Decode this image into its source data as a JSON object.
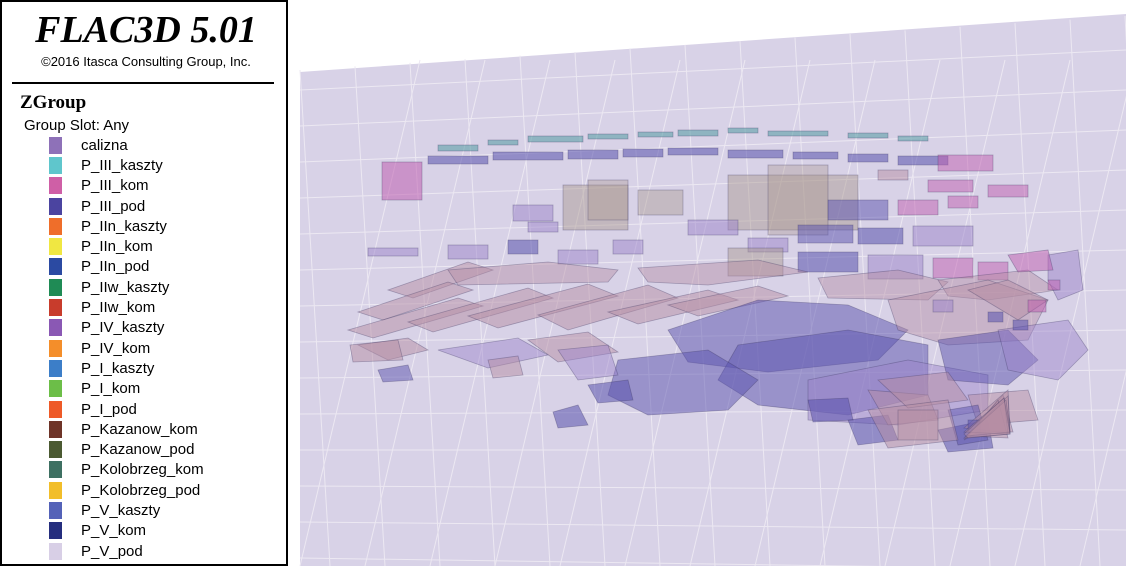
{
  "legend": {
    "app_title": "FLAC3D 5.01",
    "copyright": "©2016 Itasca Consulting Group, Inc.",
    "heading": "ZGroup",
    "group_slot": "Group Slot: Any",
    "items": [
      {
        "label": "calizna",
        "color": "#8e71b8"
      },
      {
        "label": "P_III_kaszty",
        "color": "#5fc6cc"
      },
      {
        "label": "P_III_kom",
        "color": "#cf5fa6"
      },
      {
        "label": "P_III_pod",
        "color": "#4b44a0"
      },
      {
        "label": "P_IIn_kaszty",
        "color": "#ef6e2a"
      },
      {
        "label": "P_IIn_kom",
        "color": "#f0e742"
      },
      {
        "label": "P_IIn_pod",
        "color": "#2b4aa2"
      },
      {
        "label": "P_IIw_kaszty",
        "color": "#1f8b55"
      },
      {
        "label": "P_IIw_kom",
        "color": "#c83c2c"
      },
      {
        "label": "P_IV_kaszty",
        "color": "#8a58b4"
      },
      {
        "label": "P_IV_kom",
        "color": "#f48e2a"
      },
      {
        "label": "P_I_kaszty",
        "color": "#3c7ec8"
      },
      {
        "label": "P_I_kom",
        "color": "#6cbe48"
      },
      {
        "label": "P_I_pod",
        "color": "#ee5a28"
      },
      {
        "label": "P_Kazanow_kom",
        "color": "#6e3428"
      },
      {
        "label": "P_Kazanow_pod",
        "color": "#4b5a32"
      },
      {
        "label": "P_Kolobrzeg_kom",
        "color": "#3e7062"
      },
      {
        "label": "P_Kolobrzeg_pod",
        "color": "#f2be2a"
      },
      {
        "label": "P_V_kaszty",
        "color": "#5462b8"
      },
      {
        "label": "P_V_kom",
        "color": "#252e7e"
      },
      {
        "label": "P_V_pod",
        "color": "#d8cfe6"
      }
    ]
  },
  "viewport": {
    "background_plane_color": "#d8d2e7",
    "grid_line_color": "#ece8f2",
    "element_colors": {
      "purple": "#9b83c9",
      "mauve": "#b68ea4",
      "blue": "#5a52ad",
      "magenta": "#c05eb0",
      "teal": "#5fa0a8",
      "tan": "#a8968c"
    }
  }
}
